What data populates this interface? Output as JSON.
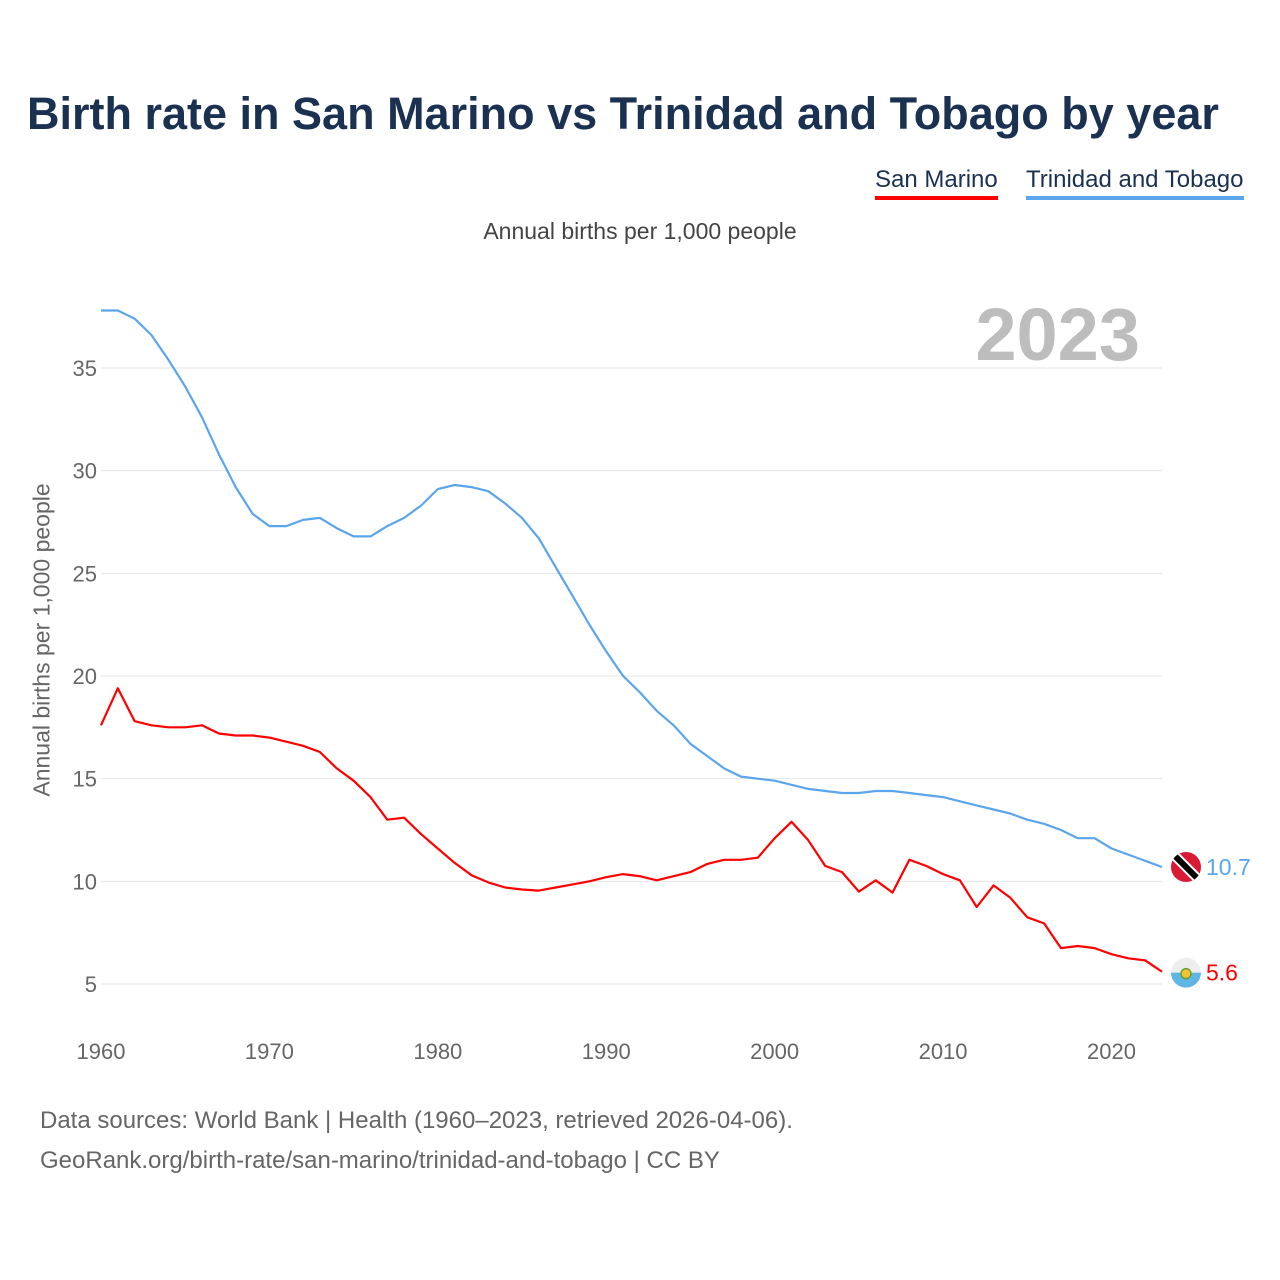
{
  "header": {
    "title": "Birth rate in San Marino vs Trinidad and Tobago by year"
  },
  "legend": [
    {
      "label": "San Marino",
      "color": "#ff0000"
    },
    {
      "label": "Trinidad and Tobago",
      "color": "#5aa5ec"
    }
  ],
  "footer": {
    "line1": "Data sources: World Bank | Health (1960–2023, retrieved 2026-04-06).",
    "line2": "GeoRank.org/birth-rate/san-marino/trinidad-and-tobago | CC BY"
  },
  "chart_data": {
    "type": "line",
    "title": "Birth rate in San Marino vs Trinidad and Tobago by year",
    "subtitle": "Annual births per 1,000 people",
    "ylabel": "Annual births per 1,000 people",
    "xlabel": "",
    "year_label": "2023",
    "xlim": [
      1960,
      2023
    ],
    "ylim": [
      3,
      38
    ],
    "xticks": [
      1960,
      1970,
      1980,
      1990,
      2000,
      2010,
      2020
    ],
    "yticks": [
      5,
      10,
      15,
      20,
      25,
      30,
      35
    ],
    "grid": true,
    "legend_position": "top-right",
    "x_start": 1960,
    "series": [
      {
        "name": "San Marino",
        "color": "#ff0000",
        "end_label": "5.6",
        "values": [
          17.6,
          19.4,
          17.8,
          17.6,
          17.5,
          17.5,
          17.6,
          17.2,
          17.1,
          17.1,
          17.0,
          16.8,
          16.6,
          16.3,
          15.5,
          14.9,
          14.1,
          13.0,
          13.1,
          12.3,
          11.6,
          10.9,
          10.3,
          9.95,
          9.7,
          9.6,
          9.55,
          9.7,
          9.85,
          10.0,
          10.2,
          10.35,
          10.25,
          10.05,
          10.25,
          10.45,
          10.85,
          11.05,
          11.05,
          11.15,
          12.1,
          12.9,
          12.0,
          10.75,
          10.45,
          9.5,
          10.05,
          9.45,
          11.05,
          10.75,
          10.35,
          10.05,
          8.75,
          9.8,
          9.2,
          8.25,
          7.95,
          6.75,
          6.85,
          6.75,
          6.45,
          6.25,
          6.15,
          5.6
        ]
      },
      {
        "name": "Trinidad and Tobago",
        "color": "#5aa5ec",
        "end_label": "10.7",
        "values": [
          37.8,
          37.8,
          37.4,
          36.6,
          35.4,
          34.1,
          32.6,
          30.8,
          29.2,
          27.9,
          27.3,
          27.3,
          27.6,
          27.7,
          27.2,
          26.8,
          26.8,
          27.3,
          27.7,
          28.3,
          29.1,
          29.3,
          29.2,
          29.0,
          28.4,
          27.7,
          26.7,
          25.3,
          23.9,
          22.5,
          21.2,
          20.0,
          19.2,
          18.3,
          17.6,
          16.7,
          16.1,
          15.5,
          15.1,
          15.0,
          14.9,
          14.7,
          14.5,
          14.4,
          14.3,
          14.3,
          14.4,
          14.4,
          14.3,
          14.2,
          14.1,
          13.9,
          13.7,
          13.5,
          13.3,
          13.0,
          12.8,
          12.5,
          12.1,
          12.1,
          11.6,
          11.3,
          11.0,
          10.7
        ]
      }
    ]
  }
}
